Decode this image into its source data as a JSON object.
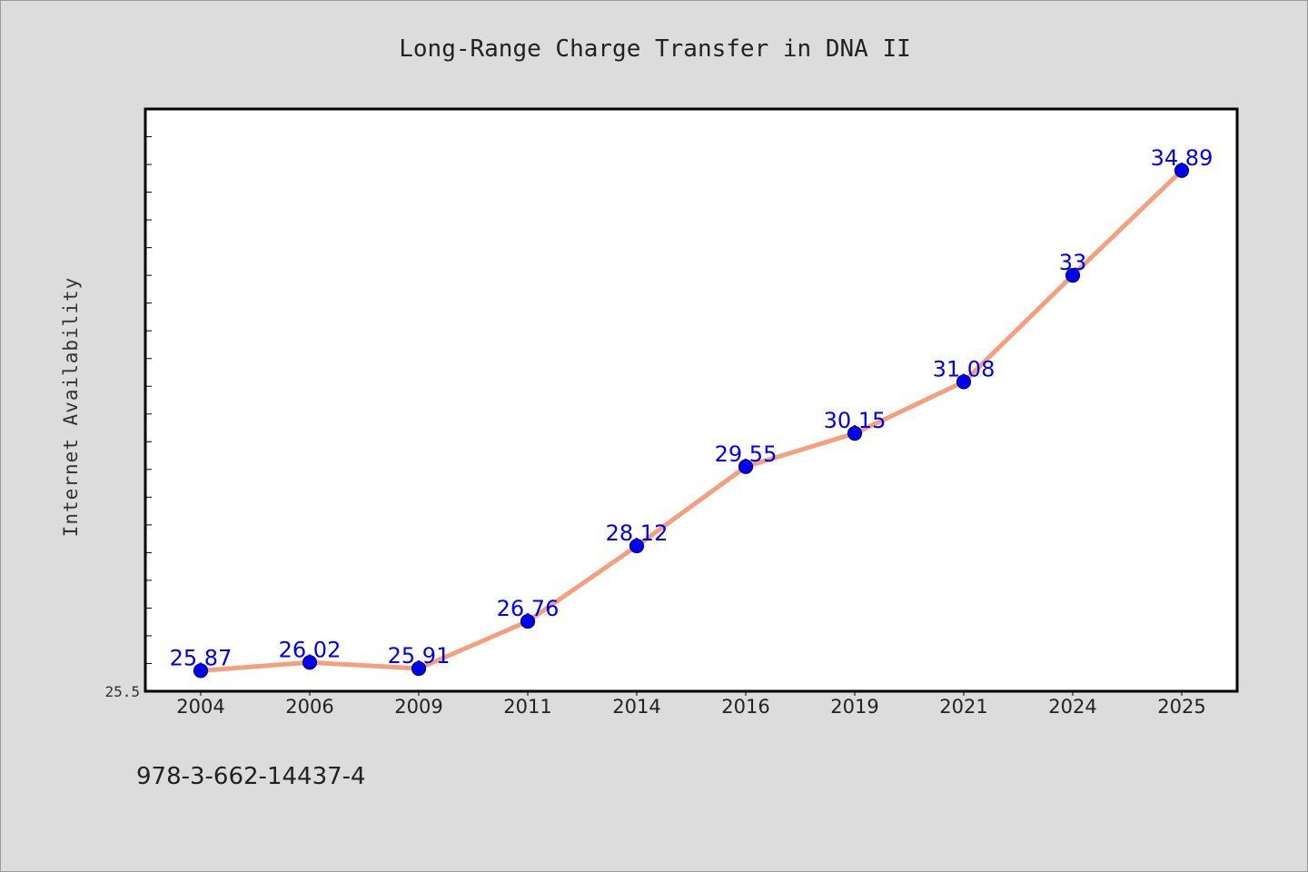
{
  "chart_data": {
    "type": "line",
    "title": "Long-Range Charge Transfer in DNA II",
    "xlabel": "",
    "ylabel": "Internet Availability",
    "categories": [
      "2004",
      "2006",
      "2009",
      "2011",
      "2014",
      "2016",
      "2019",
      "2021",
      "2024",
      "2025"
    ],
    "series": [
      {
        "values": [
          25.87,
          26.02,
          25.91,
          26.76,
          28.12,
          29.55,
          30.15,
          31.08,
          33,
          34.89
        ],
        "labels": [
          "25.87",
          "26.02",
          "25.91",
          "26.76",
          "28.12",
          "29.55",
          "30.15",
          "31.08",
          "33",
          "34.89"
        ]
      }
    ],
    "ylim": [
      25.5,
      36.0
    ],
    "yticks_labeled": [
      "25.5"
    ],
    "grid": false,
    "legend": "none",
    "colors": {
      "line": "#f4a07e",
      "marker": "#0000ee",
      "marker_edge": "#000080",
      "label": "#0000ee",
      "background": "#dcdcdc",
      "plot_background": "#ffffff"
    }
  },
  "footer": {
    "isbn": "978-3-662-14437-4"
  }
}
